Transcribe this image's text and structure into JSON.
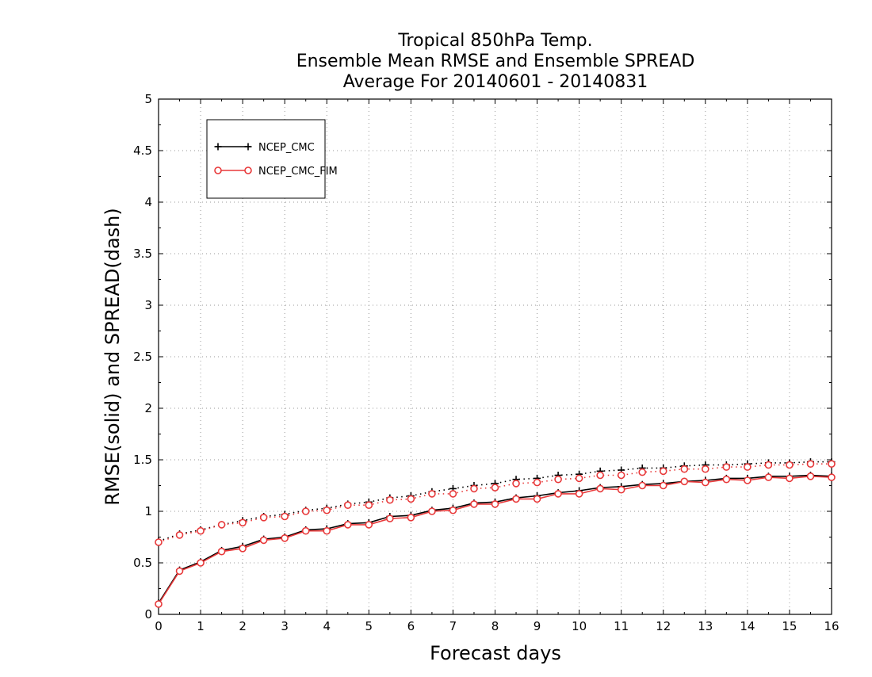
{
  "chart_data": {
    "type": "line",
    "title": [
      "Tropical 850hPa Temp.",
      "Ensemble Mean RMSE and Ensemble SPREAD",
      "Average For 20140601 - 20140831"
    ],
    "xlabel": "Forecast days",
    "ylabel": "RMSE(solid) and SPREAD(dash)",
    "xlim": [
      0,
      16
    ],
    "ylim": [
      0,
      5
    ],
    "xticks": [
      "0",
      "1",
      "2",
      "3",
      "4",
      "5",
      "6",
      "7",
      "8",
      "9",
      "10",
      "11",
      "12",
      "13",
      "14",
      "15",
      "16"
    ],
    "yticks": [
      "0",
      "0.5",
      "1",
      "1.5",
      "2",
      "2.5",
      "3",
      "3.5",
      "4",
      "4.5",
      "5"
    ],
    "grid": true,
    "legend_position": "top-left",
    "x": [
      0,
      0.5,
      1,
      1.5,
      2,
      2.5,
      3,
      3.5,
      4,
      4.5,
      5,
      5.5,
      6,
      6.5,
      7,
      7.5,
      8,
      8.5,
      9,
      9.5,
      10,
      10.5,
      11,
      11.5,
      12,
      12.5,
      13,
      13.5,
      14,
      14.5,
      15,
      15.5,
      16
    ],
    "series": [
      {
        "name": "NCEP_CMC",
        "marker": "plus",
        "color": "#000000",
        "rmse": [
          0.11,
          0.43,
          0.51,
          0.62,
          0.66,
          0.73,
          0.75,
          0.82,
          0.83,
          0.88,
          0.89,
          0.95,
          0.96,
          1.01,
          1.03,
          1.08,
          1.09,
          1.13,
          1.15,
          1.18,
          1.2,
          1.23,
          1.24,
          1.26,
          1.27,
          1.29,
          1.3,
          1.32,
          1.32,
          1.34,
          1.34,
          1.35,
          1.34
        ],
        "spread": [
          0.71,
          0.78,
          0.82,
          0.87,
          0.91,
          0.95,
          0.97,
          1.01,
          1.03,
          1.07,
          1.09,
          1.13,
          1.15,
          1.19,
          1.22,
          1.25,
          1.27,
          1.31,
          1.32,
          1.35,
          1.36,
          1.39,
          1.4,
          1.42,
          1.42,
          1.44,
          1.45,
          1.45,
          1.46,
          1.47,
          1.47,
          1.48,
          1.48
        ]
      },
      {
        "name": "NCEP_CMC_FIM",
        "marker": "circle",
        "color": "#e8393a",
        "rmse": [
          0.1,
          0.42,
          0.5,
          0.61,
          0.64,
          0.72,
          0.74,
          0.81,
          0.81,
          0.87,
          0.87,
          0.93,
          0.94,
          1.0,
          1.01,
          1.07,
          1.07,
          1.12,
          1.12,
          1.17,
          1.17,
          1.22,
          1.21,
          1.25,
          1.25,
          1.29,
          1.28,
          1.31,
          1.3,
          1.33,
          1.32,
          1.34,
          1.33
        ],
        "spread": [
          0.7,
          0.77,
          0.81,
          0.87,
          0.89,
          0.94,
          0.95,
          1.0,
          1.01,
          1.06,
          1.06,
          1.11,
          1.12,
          1.17,
          1.17,
          1.22,
          1.23,
          1.27,
          1.28,
          1.31,
          1.32,
          1.35,
          1.35,
          1.38,
          1.39,
          1.41,
          1.41,
          1.43,
          1.43,
          1.45,
          1.45,
          1.46,
          1.46
        ]
      }
    ]
  }
}
